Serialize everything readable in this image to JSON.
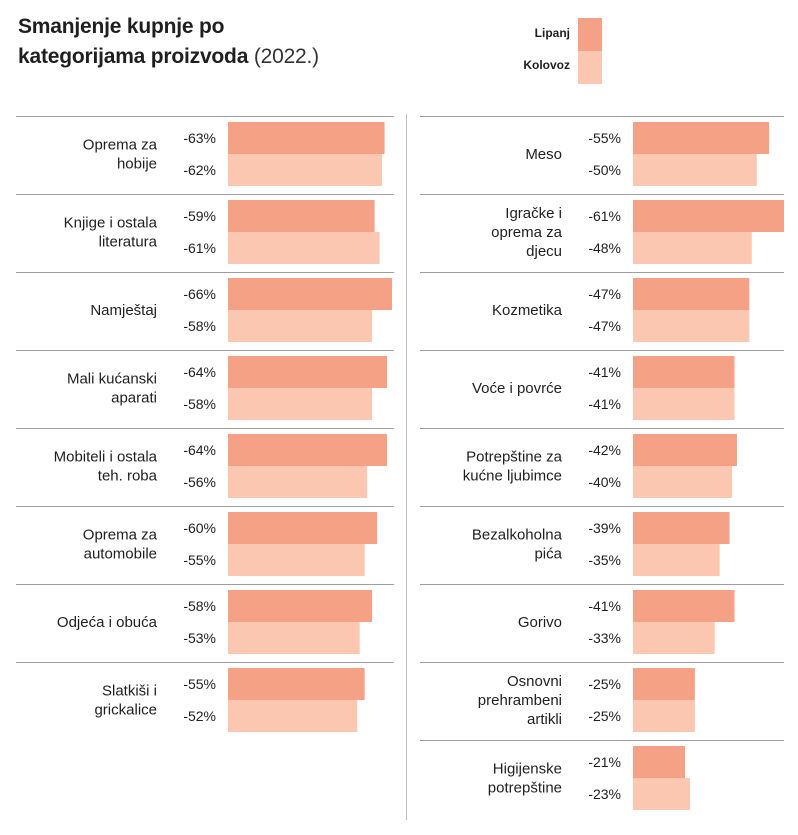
{
  "title": "Smanjenje kupnje po kategorijama proizvoda",
  "title_lines": [
    "Smanjenje kupnje po",
    "kategorijama proizvoda"
  ],
  "title_suffix": "(2022.)",
  "colors": {
    "lipanj": "#f4a185",
    "kolovoz": "#fbc7b1",
    "divider": "#bdbdbd"
  },
  "chart_data": {
    "type": "bar",
    "orientation": "horizontal",
    "title": "Smanjenje kupnje po kategorijama proizvoda (2022.)",
    "legend_position": "top-right",
    "xlim": [
      0,
      66
    ],
    "series": [
      {
        "name": "Lipanj",
        "color": "#f4a185"
      },
      {
        "name": "Kolovoz",
        "color": "#fbc7b1"
      }
    ],
    "panels": [
      {
        "categories": [
          {
            "label": [
              "Oprema za",
              "hobije"
            ],
            "values": [
              -63,
              -62
            ],
            "text": [
              "-63%",
              "-62%"
            ]
          },
          {
            "label": [
              "Knjige i ostala",
              "literatura"
            ],
            "values": [
              -59,
              -61
            ],
            "text": [
              "-59%",
              "-61%"
            ]
          },
          {
            "label": [
              "Namještaj"
            ],
            "values": [
              -66,
              -58
            ],
            "text": [
              "-66%",
              "-58%"
            ]
          },
          {
            "label": [
              "Mali kućanski",
              "aparati"
            ],
            "values": [
              -64,
              -58
            ],
            "text": [
              "-64%",
              "-58%"
            ]
          },
          {
            "label": [
              "Mobiteli i ostala",
              "teh. roba"
            ],
            "values": [
              -64,
              -56
            ],
            "text": [
              "-64%",
              "-56%"
            ]
          },
          {
            "label": [
              "Oprema za",
              "automobile"
            ],
            "values": [
              -60,
              -55
            ],
            "text": [
              "-60%",
              "-55%"
            ]
          },
          {
            "label": [
              "Odjeća i obuća"
            ],
            "values": [
              -58,
              -53
            ],
            "text": [
              "-58%",
              "-53%"
            ]
          },
          {
            "label": [
              "Slatkiši i",
              "grickalice"
            ],
            "values": [
              -55,
              -52
            ],
            "text": [
              "-55%",
              "-52%"
            ]
          }
        ]
      },
      {
        "categories": [
          {
            "label": [
              "Meso"
            ],
            "values": [
              -55,
              -50
            ],
            "text": [
              "-55%",
              "-50%"
            ]
          },
          {
            "label": [
              "Igračke i",
              "oprema za",
              "djecu"
            ],
            "values": [
              -61,
              -48
            ],
            "text": [
              "-61%",
              "-48%"
            ]
          },
          {
            "label": [
              "Kozmetika"
            ],
            "values": [
              -47,
              -47
            ],
            "text": [
              "-47%",
              "-47%"
            ]
          },
          {
            "label": [
              "Voće i povrće"
            ],
            "values": [
              -41,
              -41
            ],
            "text": [
              "-41%",
              "-41%"
            ]
          },
          {
            "label": [
              "Potrepštine za",
              "kućne ljubimce"
            ],
            "values": [
              -42,
              -40
            ],
            "text": [
              "-42%",
              "-40%"
            ]
          },
          {
            "label": [
              "Bezalkoholna",
              "pića"
            ],
            "values": [
              -39,
              -35
            ],
            "text": [
              "-39%",
              "-35%"
            ]
          },
          {
            "label": [
              "Gorivo"
            ],
            "values": [
              -41,
              -33
            ],
            "text": [
              "-41%",
              "-33%"
            ]
          },
          {
            "label": [
              "Osnovni",
              "prehrambeni",
              "artikli"
            ],
            "values": [
              -25,
              -25
            ],
            "text": [
              "-25%",
              "-25%"
            ]
          },
          {
            "label": [
              "Higijenske",
              "potrepštine"
            ],
            "values": [
              -21,
              -23
            ],
            "text": [
              "-21%",
              "-23%"
            ]
          }
        ]
      }
    ]
  }
}
